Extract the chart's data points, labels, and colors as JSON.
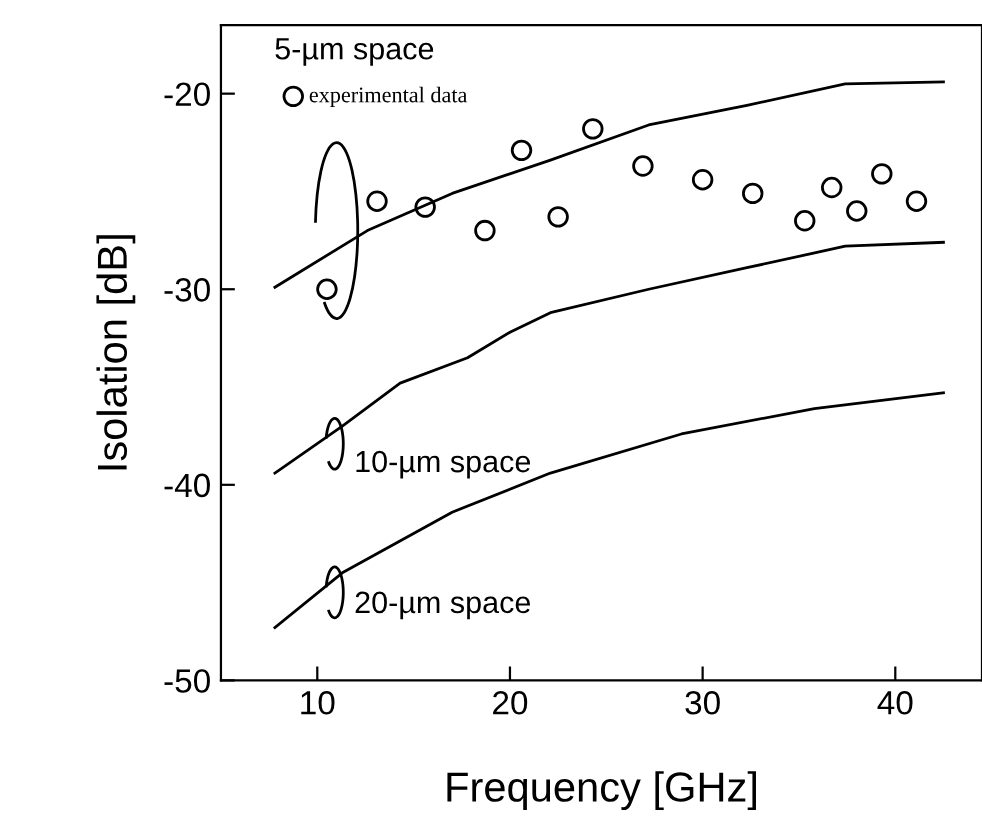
{
  "chart_data": {
    "type": "line",
    "xlabel": "Frequency [GHz]",
    "ylabel": "Isolation [dB]",
    "xlim": [
      5,
      44.5
    ],
    "ylim": [
      -50,
      -16.5
    ],
    "xticks": [
      10,
      20,
      30,
      40
    ],
    "yticks": [
      -20,
      -30,
      -40,
      -50
    ],
    "grid": false,
    "legend": "top left",
    "series": [
      {
        "type": "scatter",
        "name": "experimental data",
        "color": "#000000",
        "marker": "circle",
        "x": [
          10.5,
          13.1,
          15.6,
          18.7,
          20.6,
          22.5,
          24.3,
          26.9,
          30.0,
          32.6,
          35.3,
          36.7,
          38.0,
          39.3,
          41.1
        ],
        "values": [
          -30.0,
          -25.5,
          -25.8,
          -27.0,
          -22.9,
          -26.3,
          -21.8,
          -23.7,
          -24.4,
          -25.1,
          -26.5,
          -24.8,
          -26.0,
          -24.1,
          -25.5
        ]
      },
      {
        "color": "#000000",
        "x": [
          7.8,
          12.6,
          17.0,
          22.1,
          27.2,
          32.3,
          37.4,
          42.5
        ],
        "values": [
          -29.9,
          -27.0,
          -25.1,
          -23.4,
          -21.6,
          -20.6,
          -19.5,
          -19.4
        ]
      },
      {
        "color": "#000000",
        "x": [
          7.8,
          11.3,
          14.3,
          17.8,
          20.0,
          22.1,
          27.2,
          32.3,
          37.4,
          42.5
        ],
        "values": [
          -39.4,
          -37.0,
          -34.8,
          -33.5,
          -32.2,
          -31.2,
          -30.0,
          -28.9,
          -27.8,
          -27.6
        ]
      },
      {
        "color": "#000000",
        "x": [
          7.8,
          11.3,
          17.0,
          22.1,
          28.9,
          35.8,
          42.5
        ],
        "values": [
          -47.3,
          -44.5,
          -41.4,
          -39.4,
          -37.4,
          -36.1,
          -35.3
        ]
      }
    ],
    "annotations": [
      "5-µm space",
      "10-µm space",
      "20-µm space"
    ]
  }
}
